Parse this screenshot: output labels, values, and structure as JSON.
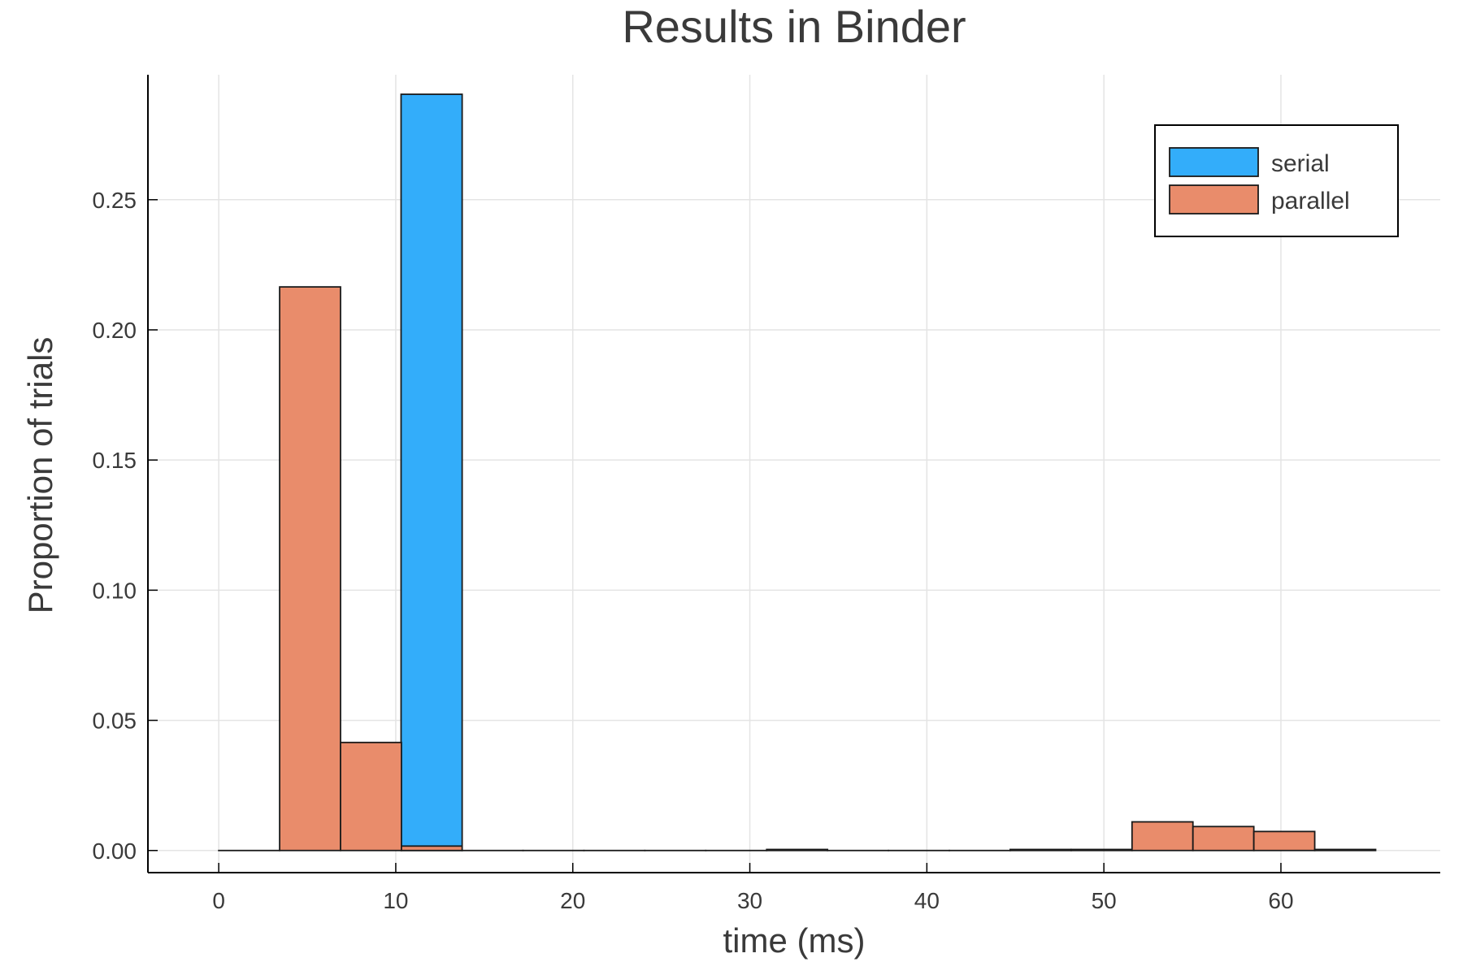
{
  "chart_data": {
    "type": "bar",
    "title": "Results in Binder",
    "xlabel": "time (ms)",
    "ylabel": "Proportion of trials",
    "xlim": [
      -4,
      69
    ],
    "ylim": [
      -0.0085,
      0.298
    ],
    "xticks": [
      0,
      10,
      20,
      30,
      40,
      50,
      60
    ],
    "xtick_labels": [
      "0",
      "10",
      "20",
      "30",
      "40",
      "50",
      "60"
    ],
    "yticks": [
      0,
      0.05,
      0.1,
      0.15,
      0.2,
      0.25
    ],
    "ytick_labels": [
      "0.00",
      "0.05",
      "0.10",
      "0.15",
      "0.20",
      "0.25"
    ],
    "grid": true,
    "legend_position": "top-right",
    "series": [
      {
        "name": "serial",
        "color": "#33adfa",
        "bins": [
          {
            "x0": 10.3,
            "x1": 13.75,
            "value": 0.2905
          }
        ]
      },
      {
        "name": "parallel",
        "color": "#e98c6b",
        "bins": [
          {
            "x0": 0.0,
            "x1": 3.44,
            "value": 0.0
          },
          {
            "x0": 3.44,
            "x1": 6.88,
            "value": 0.2165
          },
          {
            "x0": 6.88,
            "x1": 10.32,
            "value": 0.0415
          },
          {
            "x0": 10.32,
            "x1": 13.75,
            "value": 0.0017
          },
          {
            "x0": 13.75,
            "x1": 17.19,
            "value": 0.0
          },
          {
            "x0": 17.19,
            "x1": 20.63,
            "value": 0.0
          },
          {
            "x0": 20.63,
            "x1": 24.07,
            "value": 0.0
          },
          {
            "x0": 24.07,
            "x1": 27.51,
            "value": 0.0
          },
          {
            "x0": 27.51,
            "x1": 30.95,
            "value": 0.0
          },
          {
            "x0": 30.95,
            "x1": 34.39,
            "value": 0.0004
          },
          {
            "x0": 34.39,
            "x1": 37.83,
            "value": 0.0
          },
          {
            "x0": 37.83,
            "x1": 41.27,
            "value": 0.0
          },
          {
            "x0": 41.27,
            "x1": 44.71,
            "value": 0.0
          },
          {
            "x0": 44.71,
            "x1": 48.15,
            "value": 0.0004
          },
          {
            "x0": 48.15,
            "x1": 51.59,
            "value": 0.0004
          },
          {
            "x0": 51.59,
            "x1": 55.03,
            "value": 0.011
          },
          {
            "x0": 55.03,
            "x1": 58.47,
            "value": 0.0092
          },
          {
            "x0": 58.47,
            "x1": 61.91,
            "value": 0.0073
          },
          {
            "x0": 61.91,
            "x1": 65.35,
            "value": 0.0004
          }
        ]
      }
    ]
  }
}
